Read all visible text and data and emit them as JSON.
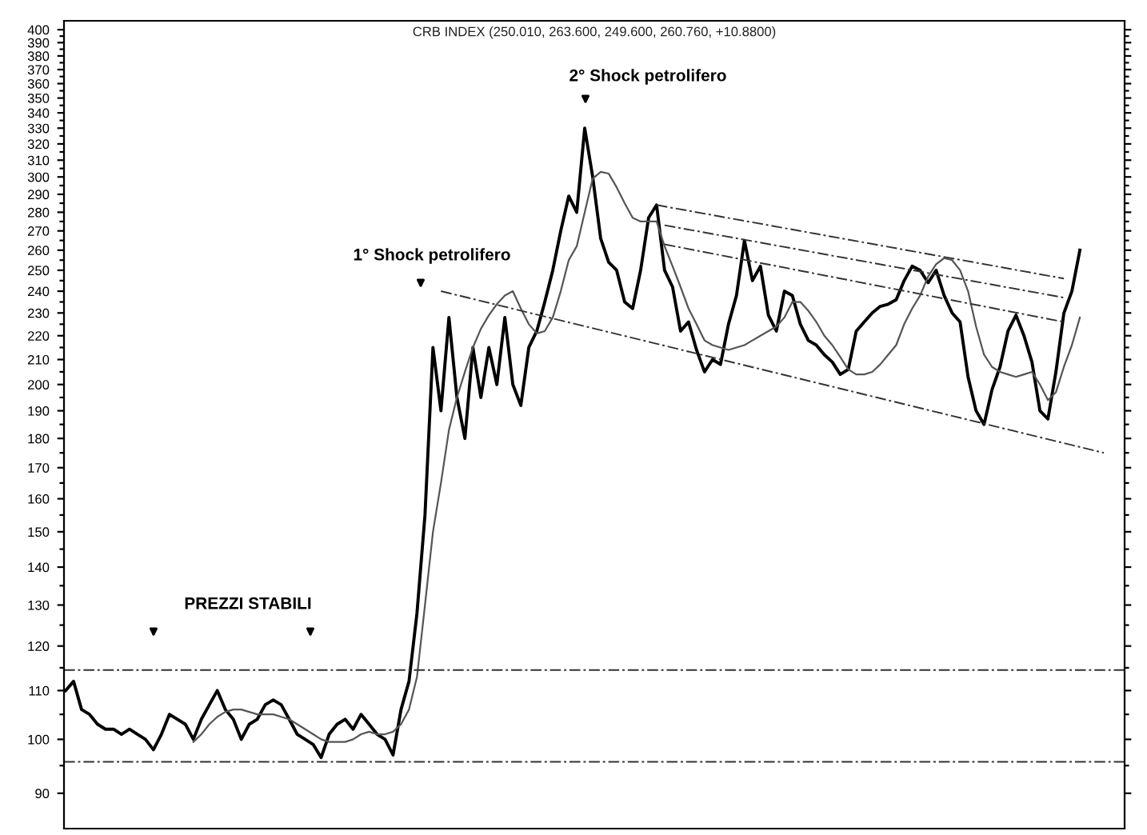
{
  "chart_data": {
    "type": "line",
    "title": "CRB INDEX (250.010, 263.600, 249.600, 260.760, +10.8800)",
    "categories": [
      null,
      null,
      null,
      null,
      null,
      null,
      null,
      null,
      null,
      null,
      null,
      null,
      null,
      null,
      null,
      null,
      null,
      null,
      null,
      null,
      null,
      null,
      null,
      null,
      null,
      null,
      null,
      null,
      null,
      null,
      null,
      null,
      null,
      null,
      null,
      null,
      null,
      null,
      null,
      null,
      null,
      null,
      null,
      null,
      null,
      null,
      null,
      null,
      null,
      null,
      null,
      null,
      null,
      null,
      null,
      null,
      null,
      null,
      null,
      null,
      null,
      null,
      null,
      null,
      null,
      null,
      null,
      null,
      null,
      null,
      null,
      null,
      null,
      null,
      null,
      null,
      null,
      null,
      null,
      null,
      null,
      null,
      null,
      null,
      null,
      null,
      null,
      null,
      null,
      null,
      null,
      null,
      null,
      null,
      null,
      null,
      null,
      null,
      null,
      null,
      null,
      null,
      null,
      null,
      null,
      null,
      null,
      null,
      null,
      null,
      null,
      null,
      null,
      null,
      null,
      null,
      null,
      null,
      null,
      null,
      null,
      null,
      null,
      null,
      null,
      null,
      null,
      null,
      null,
      null,
      null,
      null,
      null
    ],
    "series": [
      {
        "color": "#000000",
        "values": [
          110,
          112,
          106,
          105,
          103,
          102,
          102,
          101,
          102,
          101,
          100,
          98,
          101,
          105,
          104,
          103,
          100,
          104,
          107,
          110,
          106,
          104,
          100,
          103,
          104,
          107,
          108,
          107,
          104,
          101,
          100,
          99,
          96.5,
          101,
          103,
          104,
          102,
          105,
          103,
          101,
          100,
          97,
          106,
          112,
          128,
          155,
          215,
          190,
          228,
          195,
          180,
          215,
          195,
          215,
          200,
          228,
          200,
          192,
          215,
          222,
          235,
          250,
          270,
          289,
          280,
          330,
          300,
          266,
          254,
          250,
          235,
          232,
          250,
          277,
          284,
          250,
          242,
          222,
          226,
          214,
          205,
          210,
          208,
          225,
          238,
          265,
          245,
          252,
          229,
          222,
          240,
          238,
          225,
          218,
          216,
          212,
          209,
          204,
          206,
          222,
          226,
          230,
          233,
          234,
          236,
          245,
          252,
          250,
          244,
          250,
          238,
          230,
          226,
          203,
          190,
          185,
          198,
          207,
          222,
          229,
          220,
          209,
          190,
          187,
          205,
          230,
          240,
          260,
          null,
          null,
          null,
          null,
          null
        ]
      },
      {
        "color": "#555555",
        "values": [
          null,
          null,
          null,
          null,
          null,
          null,
          null,
          null,
          null,
          null,
          null,
          null,
          null,
          null,
          null,
          null,
          99.5,
          101,
          103,
          104.5,
          105.5,
          106,
          106,
          105.5,
          105,
          105,
          105,
          104.5,
          104,
          103,
          102,
          101,
          100,
          99.5,
          99.5,
          99.5,
          100,
          101,
          101.5,
          101,
          101,
          101.5,
          103,
          106,
          113,
          130,
          150,
          165,
          183,
          195,
          205,
          215,
          223,
          229,
          234,
          238,
          240,
          232,
          225,
          221,
          222,
          228,
          240,
          255,
          262,
          280,
          299,
          303,
          302,
          294,
          285,
          277,
          275,
          275,
          275,
          262,
          252,
          242,
          232,
          225,
          218,
          216,
          215,
          214,
          215,
          216,
          218,
          220,
          222,
          224,
          228,
          235,
          235,
          231,
          226,
          220,
          216,
          211,
          206,
          204,
          204,
          205,
          208,
          212,
          216,
          225,
          232,
          238,
          247,
          253,
          256,
          255,
          250,
          240,
          224,
          212,
          207,
          205,
          204,
          203,
          204,
          205,
          200,
          194,
          197,
          207,
          216,
          228,
          null,
          null,
          null,
          null,
          null
        ]
      },
      {
        "color": "#333333",
        "line_style": "dashed",
        "values": [
          null,
          null,
          null,
          null,
          null,
          null,
          null,
          null,
          null,
          null,
          null,
          null,
          null,
          null,
          null,
          null,
          null,
          null,
          null,
          null,
          null,
          null,
          null,
          null,
          null,
          null,
          null,
          null,
          null,
          null,
          null,
          null,
          null,
          null,
          null,
          null,
          null,
          null,
          null,
          null,
          null,
          null,
          null,
          null,
          null,
          null,
          null,
          240,
          null,
          null,
          null,
          null,
          null,
          null,
          null,
          null,
          null,
          null,
          null,
          null,
          null,
          null,
          null,
          null,
          null,
          null,
          null,
          null,
          null,
          null,
          null,
          null,
          null,
          null,
          null,
          null,
          null,
          null,
          null,
          null,
          null,
          null,
          null,
          null,
          null,
          null,
          null,
          null,
          null,
          null,
          null,
          null,
          null,
          null,
          null,
          null,
          null,
          null,
          null,
          null,
          null,
          null,
          null,
          null,
          null,
          null,
          null,
          null,
          null,
          null,
          null,
          null,
          null,
          null,
          null,
          null,
          null,
          null,
          null,
          null,
          null,
          null,
          null,
          null,
          null,
          null,
          null,
          null,
          null,
          null,
          175,
          null,
          null
        ]
      },
      {
        "color": "#333333",
        "line_style": "dashed",
        "values": [
          null,
          null,
          null,
          null,
          null,
          null,
          null,
          null,
          null,
          null,
          null,
          null,
          null,
          null,
          null,
          null,
          null,
          null,
          null,
          null,
          null,
          null,
          null,
          null,
          null,
          null,
          null,
          null,
          null,
          null,
          null,
          null,
          null,
          null,
          null,
          null,
          null,
          null,
          null,
          null,
          null,
          null,
          null,
          null,
          null,
          null,
          null,
          null,
          null,
          null,
          null,
          null,
          null,
          null,
          null,
          null,
          null,
          null,
          null,
          null,
          null,
          null,
          null,
          null,
          null,
          null,
          null,
          null,
          null,
          null,
          null,
          null,
          null,
          null,
          284,
          null,
          null,
          null,
          null,
          null,
          null,
          null,
          null,
          null,
          null,
          null,
          null,
          null,
          null,
          null,
          null,
          null,
          null,
          null,
          null,
          null,
          null,
          null,
          null,
          null,
          null,
          null,
          null,
          null,
          null,
          null,
          null,
          null,
          null,
          null,
          null,
          null,
          null,
          null,
          null,
          null,
          null,
          null,
          null,
          null,
          null,
          null,
          null,
          null,
          null,
          246,
          null,
          null,
          null,
          null,
          null,
          null,
          null
        ]
      },
      {
        "color": "#333333",
        "line_style": "dashed",
        "values": [
          null,
          null,
          null,
          null,
          null,
          null,
          null,
          null,
          null,
          null,
          null,
          null,
          null,
          null,
          null,
          null,
          null,
          null,
          null,
          null,
          null,
          null,
          null,
          null,
          null,
          null,
          null,
          null,
          null,
          null,
          null,
          null,
          null,
          null,
          null,
          null,
          null,
          null,
          null,
          null,
          null,
          null,
          null,
          null,
          null,
          null,
          null,
          null,
          null,
          null,
          null,
          null,
          null,
          null,
          null,
          null,
          null,
          null,
          null,
          null,
          null,
          null,
          null,
          null,
          null,
          null,
          null,
          null,
          null,
          null,
          null,
          null,
          null,
          null,
          null,
          273,
          null,
          null,
          null,
          null,
          null,
          null,
          null,
          null,
          null,
          null,
          null,
          null,
          null,
          null,
          null,
          null,
          null,
          null,
          null,
          null,
          null,
          null,
          null,
          null,
          null,
          null,
          null,
          null,
          null,
          null,
          null,
          null,
          null,
          null,
          null,
          null,
          null,
          null,
          null,
          null,
          null,
          null,
          null,
          null,
          null,
          null,
          null,
          null,
          null,
          237,
          null,
          null,
          null,
          null,
          null,
          null,
          null
        ]
      },
      {
        "color": "#333333",
        "line_style": "dashed",
        "values": [
          null,
          null,
          null,
          null,
          null,
          null,
          null,
          null,
          null,
          null,
          null,
          null,
          null,
          null,
          null,
          null,
          null,
          null,
          null,
          null,
          null,
          null,
          null,
          null,
          null,
          null,
          null,
          null,
          null,
          null,
          null,
          null,
          null,
          null,
          null,
          null,
          null,
          null,
          null,
          null,
          null,
          null,
          null,
          null,
          null,
          null,
          null,
          null,
          null,
          null,
          null,
          null,
          null,
          null,
          null,
          null,
          null,
          null,
          null,
          null,
          null,
          null,
          null,
          null,
          null,
          null,
          null,
          null,
          null,
          null,
          null,
          null,
          null,
          null,
          null,
          263,
          null,
          null,
          null,
          null,
          null,
          null,
          null,
          null,
          null,
          null,
          null,
          null,
          null,
          null,
          null,
          null,
          null,
          null,
          null,
          null,
          null,
          null,
          null,
          null,
          null,
          null,
          null,
          null,
          null,
          null,
          null,
          null,
          null,
          null,
          null,
          null,
          null,
          null,
          null,
          null,
          null,
          null,
          null,
          null,
          null,
          null,
          null,
          null,
          null,
          226,
          null,
          null,
          null,
          null,
          null,
          null,
          null
        ]
      }
    ],
    "ref_lines": [
      {
        "axis": "y",
        "value": 114.5,
        "color": "#333333",
        "line_style": "dashed"
      },
      {
        "axis": "y",
        "value": 95.7,
        "color": "#333333",
        "line_style": "dashed"
      }
    ],
    "annotations": [
      "PREZZI STABILI",
      "1° Shock petrolifero",
      "2° Shock petrolifero"
    ],
    "log": "y",
    "ylim": [
      84,
      407
    ],
    "yticks": [
      90,
      100,
      110,
      120,
      130,
      140,
      150,
      160,
      170,
      180,
      190,
      200,
      210,
      220,
      230,
      240,
      250,
      260,
      270,
      280,
      290,
      300,
      310,
      320,
      330,
      340,
      350,
      360,
      370,
      380,
      390,
      400
    ],
    "tick_labels": "y",
    "grid": false,
    "legend": false,
    "marker": "none"
  }
}
